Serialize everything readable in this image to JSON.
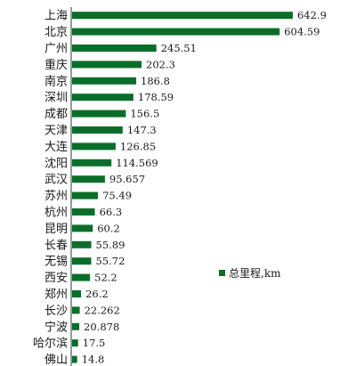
{
  "chart_data": {
    "type": "bar",
    "orientation": "horizontal",
    "categories": [
      "上海",
      "北京",
      "广州",
      "重庆",
      "南京",
      "深圳",
      "成都",
      "天津",
      "大连",
      "沈阳",
      "武汉",
      "苏州",
      "杭州",
      "昆明",
      "长春",
      "无锡",
      "西安",
      "郑州",
      "长沙",
      "宁波",
      "哈尔滨",
      "佛山"
    ],
    "series": [
      {
        "name": "总里程,km",
        "values": [
          642.9,
          604.59,
          245.51,
          202.3,
          186.8,
          178.59,
          156.5,
          147.3,
          126.85,
          114.569,
          95.657,
          75.49,
          66.3,
          60.2,
          55.89,
          55.72,
          52.2,
          26.2,
          22.262,
          20.878,
          17.5,
          14.8
        ],
        "labels": [
          "642.9",
          "604.59",
          "245.51",
          "202.3",
          "186.8",
          "178.59",
          "156.5",
          "147.3",
          "126.85",
          "114.569",
          "95.657",
          "75.49",
          "66.3",
          "60.2",
          "55.89",
          "55.72",
          "52.2",
          "26.2",
          "22.262",
          "20.878",
          "17.5",
          "14.8"
        ]
      }
    ],
    "xlim": [
      0,
      700
    ],
    "axis_visible": false,
    "grid": false,
    "legend": {
      "position": "right",
      "label": "总里程,km"
    },
    "bar_color": "#0a6e2a"
  }
}
